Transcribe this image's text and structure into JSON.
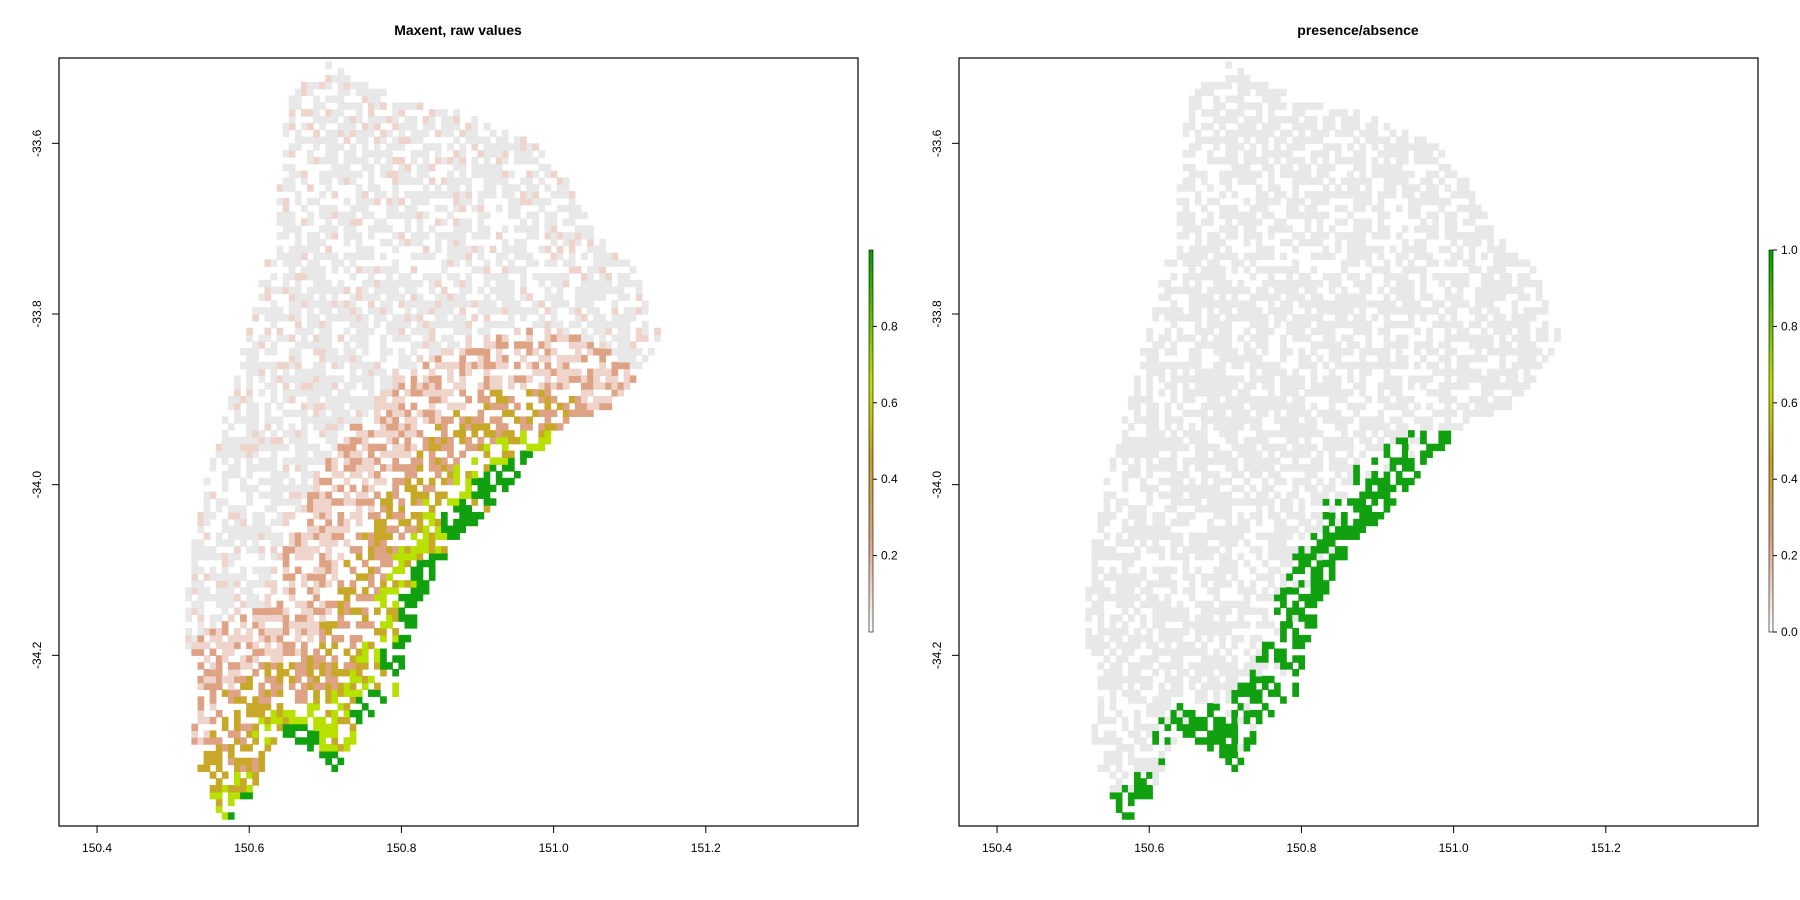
{
  "colors": {
    "background_land": "#e8e8e8",
    "low": "#f0e0dc",
    "mid_low": "#e0a080",
    "mid": "#c8a020",
    "mid_high": "#c0e000",
    "high": "#00a000",
    "frame": "#000000"
  },
  "chart_data": [
    {
      "type": "heatmap",
      "title": "Maxent, raw values",
      "xlim": [
        150.35,
        151.4
      ],
      "ylim": [
        -34.4,
        -33.5
      ],
      "xticks": [
        150.4,
        150.6,
        150.8,
        151.0,
        151.2
      ],
      "xtick_labels": [
        "150.4",
        "150.6",
        "150.8",
        "151.0",
        "151.2"
      ],
      "yticks": [
        -33.6,
        -33.8,
        -34.0,
        -34.2
      ],
      "ytick_labels": [
        "-33.6",
        "-33.8",
        "-34.0",
        "-34.2"
      ],
      "legend": {
        "placement": "right",
        "range": [
          0,
          1
        ],
        "ticks": [
          0.2,
          0.4,
          0.6,
          0.8
        ],
        "tick_labels": [
          "0.2",
          "0.4",
          "0.6",
          "0.8"
        ],
        "gradient": [
          "#ffffff",
          "#e0a080",
          "#c8a020",
          "#c0e000",
          "#00a000"
        ]
      },
      "value_classes": [
        {
          "value": 0.02,
          "color": "#e8e8e8"
        },
        {
          "value": 0.1,
          "color": "#f0d6d0"
        },
        {
          "value": 0.25,
          "color": "#e0a080"
        },
        {
          "value": 0.45,
          "color": "#c8a020"
        },
        {
          "value": 0.65,
          "color": "#c0e000"
        },
        {
          "value": 0.9,
          "color": "#00a000"
        }
      ]
    },
    {
      "type": "heatmap",
      "title": "presence/absence",
      "xlim": [
        150.35,
        151.4
      ],
      "ylim": [
        -34.4,
        -33.5
      ],
      "xticks": [
        150.4,
        150.6,
        150.8,
        151.0,
        151.2
      ],
      "xtick_labels": [
        "150.4",
        "150.6",
        "150.8",
        "151.0",
        "151.2"
      ],
      "yticks": [
        -33.6,
        -33.8,
        -34.0,
        -34.2
      ],
      "ytick_labels": [
        "-33.6",
        "-33.8",
        "-34.0",
        "-34.2"
      ],
      "legend": {
        "placement": "right",
        "range": [
          0,
          1
        ],
        "ticks": [
          0.0,
          0.2,
          0.4,
          0.6,
          0.8,
          1.0
        ],
        "tick_labels": [
          "0.0",
          "0.2",
          "0.4",
          "0.6",
          "0.8",
          "1.0"
        ],
        "gradient": [
          "#ffffff",
          "#e0a080",
          "#c8a020",
          "#c0e000",
          "#00a000"
        ]
      },
      "value_classes": [
        {
          "value": 0,
          "color": "#e8e8e8"
        },
        {
          "value": 1,
          "color": "#10a010"
        }
      ]
    }
  ]
}
